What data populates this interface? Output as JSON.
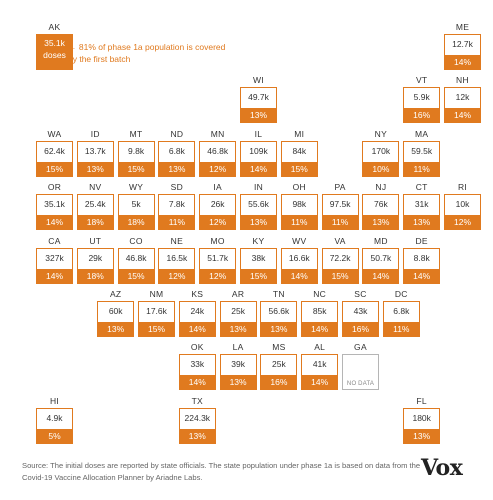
{
  "chart_data": {
    "type": "tile-grid-map",
    "annotation": "← 81% of phase 1a population is covered by the first batch",
    "dose_unit_label": "doses",
    "no_data_label": "NO DATA",
    "accent_color": "#e07a1f",
    "states": [
      {
        "abbr": "AK",
        "doses": "35.1k",
        "pct": "",
        "col": 0,
        "row": 0
      },
      {
        "abbr": "ME",
        "doses": "12.7k",
        "pct": "14%",
        "col": 10,
        "row": 0
      },
      {
        "abbr": "WI",
        "doses": "49.7k",
        "pct": "13%",
        "col": 5,
        "row": 1
      },
      {
        "abbr": "VT",
        "doses": "5.9k",
        "pct": "16%",
        "col": 9,
        "row": 1
      },
      {
        "abbr": "NH",
        "doses": "12k",
        "pct": "14%",
        "col": 10,
        "row": 1
      },
      {
        "abbr": "WA",
        "doses": "62.4k",
        "pct": "15%",
        "col": 0,
        "row": 2
      },
      {
        "abbr": "ID",
        "doses": "13.7k",
        "pct": "13%",
        "col": 1,
        "row": 2
      },
      {
        "abbr": "MT",
        "doses": "9.8k",
        "pct": "15%",
        "col": 2,
        "row": 2
      },
      {
        "abbr": "ND",
        "doses": "6.8k",
        "pct": "13%",
        "col": 3,
        "row": 2
      },
      {
        "abbr": "MN",
        "doses": "46.8k",
        "pct": "12%",
        "col": 4,
        "row": 2
      },
      {
        "abbr": "IL",
        "doses": "109k",
        "pct": "14%",
        "col": 5,
        "row": 2
      },
      {
        "abbr": "MI",
        "doses": "84k",
        "pct": "15%",
        "col": 6,
        "row": 2
      },
      {
        "abbr": "NY",
        "doses": "170k",
        "pct": "10%",
        "col": 8,
        "row": 2
      },
      {
        "abbr": "MA",
        "doses": "59.5k",
        "pct": "11%",
        "col": 9,
        "row": 2
      },
      {
        "abbr": "OR",
        "doses": "35.1k",
        "pct": "14%",
        "col": 0,
        "row": 3
      },
      {
        "abbr": "NV",
        "doses": "25.4k",
        "pct": "18%",
        "col": 1,
        "row": 3
      },
      {
        "abbr": "WY",
        "doses": "5k",
        "pct": "18%",
        "col": 2,
        "row": 3
      },
      {
        "abbr": "SD",
        "doses": "7.8k",
        "pct": "11%",
        "col": 3,
        "row": 3
      },
      {
        "abbr": "IA",
        "doses": "26k",
        "pct": "12%",
        "col": 4,
        "row": 3
      },
      {
        "abbr": "IN",
        "doses": "55.6k",
        "pct": "13%",
        "col": 5,
        "row": 3
      },
      {
        "abbr": "OH",
        "doses": "98k",
        "pct": "11%",
        "col": 6,
        "row": 3
      },
      {
        "abbr": "PA",
        "doses": "97.5k",
        "pct": "11%",
        "col": 7,
        "row": 3
      },
      {
        "abbr": "NJ",
        "doses": "76k",
        "pct": "13%",
        "col": 8,
        "row": 3
      },
      {
        "abbr": "CT",
        "doses": "31k",
        "pct": "13%",
        "col": 9,
        "row": 3
      },
      {
        "abbr": "RI",
        "doses": "10k",
        "pct": "12%",
        "col": 10,
        "row": 3
      },
      {
        "abbr": "CA",
        "doses": "327k",
        "pct": "14%",
        "col": 0,
        "row": 4
      },
      {
        "abbr": "UT",
        "doses": "29k",
        "pct": "18%",
        "col": 1,
        "row": 4
      },
      {
        "abbr": "CO",
        "doses": "46.8k",
        "pct": "15%",
        "col": 2,
        "row": 4
      },
      {
        "abbr": "NE",
        "doses": "16.5k",
        "pct": "12%",
        "col": 3,
        "row": 4
      },
      {
        "abbr": "MO",
        "doses": "51.7k",
        "pct": "12%",
        "col": 4,
        "row": 4
      },
      {
        "abbr": "KY",
        "doses": "38k",
        "pct": "15%",
        "col": 5,
        "row": 4
      },
      {
        "abbr": "WV",
        "doses": "16.6k",
        "pct": "14%",
        "col": 6,
        "row": 4
      },
      {
        "abbr": "VA",
        "doses": "72.2k",
        "pct": "15%",
        "col": 7,
        "row": 4
      },
      {
        "abbr": "MD",
        "doses": "50.7k",
        "pct": "14%",
        "col": 8,
        "row": 4
      },
      {
        "abbr": "DE",
        "doses": "8.8k",
        "pct": "14%",
        "col": 9,
        "row": 4
      },
      {
        "abbr": "AZ",
        "doses": "60k",
        "pct": "13%",
        "col": 1.5,
        "row": 5
      },
      {
        "abbr": "NM",
        "doses": "17.6k",
        "pct": "15%",
        "col": 2.5,
        "row": 5
      },
      {
        "abbr": "KS",
        "doses": "24k",
        "pct": "14%",
        "col": 3.5,
        "row": 5
      },
      {
        "abbr": "AR",
        "doses": "25k",
        "pct": "13%",
        "col": 4.5,
        "row": 5
      },
      {
        "abbr": "TN",
        "doses": "56.6k",
        "pct": "13%",
        "col": 5.5,
        "row": 5
      },
      {
        "abbr": "NC",
        "doses": "85k",
        "pct": "14%",
        "col": 6.5,
        "row": 5
      },
      {
        "abbr": "SC",
        "doses": "43k",
        "pct": "16%",
        "col": 7.5,
        "row": 5
      },
      {
        "abbr": "DC",
        "doses": "6.8k",
        "pct": "11%",
        "col": 8.5,
        "row": 5
      },
      {
        "abbr": "OK",
        "doses": "33k",
        "pct": "14%",
        "col": 3.5,
        "row": 6
      },
      {
        "abbr": "LA",
        "doses": "39k",
        "pct": "13%",
        "col": 4.5,
        "row": 6
      },
      {
        "abbr": "MS",
        "doses": "25k",
        "pct": "16%",
        "col": 5.5,
        "row": 6
      },
      {
        "abbr": "AL",
        "doses": "41k",
        "pct": "14%",
        "col": 6.5,
        "row": 6
      },
      {
        "abbr": "GA",
        "doses": "",
        "pct": "",
        "col": 7.5,
        "row": 6,
        "no_data": true
      },
      {
        "abbr": "HI",
        "doses": "4.9k",
        "pct": "5%",
        "col": 0,
        "row": 7
      },
      {
        "abbr": "TX",
        "doses": "224.3k",
        "pct": "13%",
        "col": 3.5,
        "row": 7
      },
      {
        "abbr": "FL",
        "doses": "180k",
        "pct": "13%",
        "col": 9,
        "row": 7
      }
    ]
  },
  "source": "Source: The initial doses are reported by state officials. The state population under phase 1a is based on data from the Covid-19 Vaccine Allocation Planner by Ariadne Labs.",
  "logo": "Vox"
}
